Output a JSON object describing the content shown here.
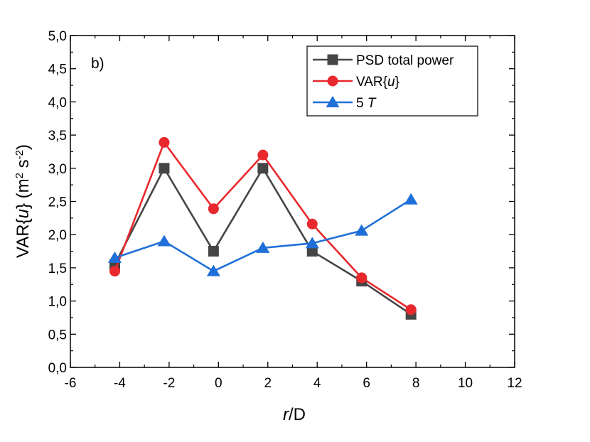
{
  "chart_data": {
    "type": "line",
    "panel_label": "b)",
    "xlabel": {
      "italic": "r",
      "rest": "/D"
    },
    "ylabel": "VAR{u}  (m² s⁻²)",
    "xlim": [
      -6,
      12
    ],
    "ylim": [
      0,
      5
    ],
    "xticks": [
      -6,
      -4,
      -2,
      0,
      2,
      4,
      6,
      8,
      10,
      12
    ],
    "yticks": [
      0,
      0.5,
      1.0,
      1.5,
      2.0,
      2.5,
      3.0,
      3.5,
      4.0,
      4.5,
      5.0
    ],
    "xtick_labels": [
      "-6",
      "-4",
      "-2",
      "0",
      "2",
      "4",
      "6",
      "8",
      "10",
      "12"
    ],
    "ytick_labels": [
      "0,0",
      "0,5",
      "1,0",
      "1,5",
      "2,0",
      "2,5",
      "3,0",
      "3,5",
      "4,0",
      "4,5",
      "5,0"
    ],
    "x": [
      -4.2,
      -2.2,
      -0.2,
      1.8,
      3.8,
      5.8,
      7.8
    ],
    "series": [
      {
        "name": "PSD total power",
        "color": "#454545",
        "marker": "square",
        "values": [
          1.55,
          3.0,
          1.75,
          3.0,
          1.75,
          1.3,
          0.8
        ]
      },
      {
        "name": "VAR{u}",
        "color": "#e8282d",
        "marker": "circle",
        "values": [
          1.45,
          3.39,
          2.39,
          3.2,
          2.16,
          1.35,
          0.87
        ]
      },
      {
        "name": "5 T",
        "color": "#1f6fd8",
        "marker": "triangle",
        "values": [
          1.65,
          1.9,
          1.45,
          1.8,
          1.87,
          2.06,
          2.53
        ]
      }
    ],
    "legend_position": "top-right",
    "grid": false
  }
}
